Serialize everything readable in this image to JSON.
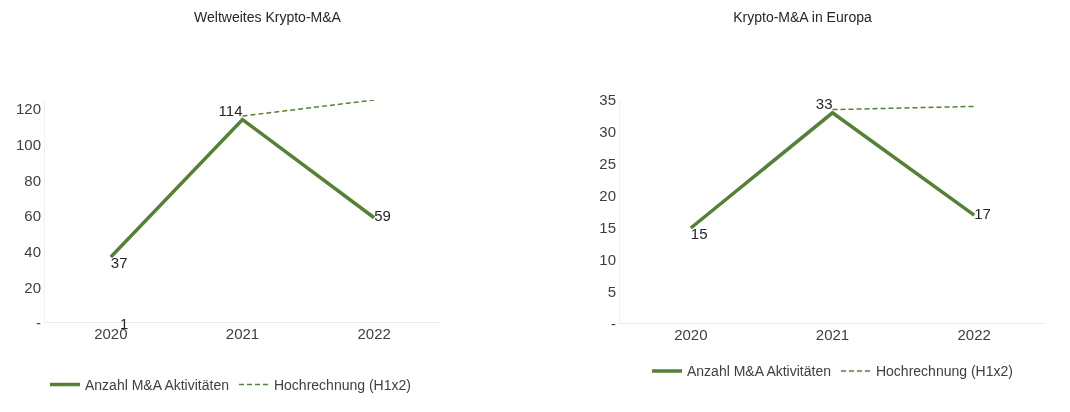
{
  "chart_data": [
    {
      "type": "line",
      "title": "Weltweites Krypto-M&A",
      "categories": [
        "2020",
        "2021",
        "2022"
      ],
      "series": [
        {
          "name": "Anzahl M&A Aktivitäten",
          "color": "#548235",
          "values": [
            37,
            114,
            59
          ],
          "value_labels": [
            "37",
            "114",
            "59"
          ],
          "line_style": "solid"
        },
        {
          "name": "Hochrechnung (H1x2)",
          "color": "#548235",
          "values": [
            null,
            116,
            125
          ],
          "line_style": "dashed"
        }
      ],
      "ylim": [
        0,
        125
      ],
      "yticks": [
        {
          "value": 0,
          "label": "-"
        },
        20,
        40,
        60,
        80,
        100,
        120
      ],
      "grid": false,
      "legend": "bottom left",
      "marker": "none",
      "annotations": [
        "1"
      ]
    },
    {
      "type": "line",
      "title": "Krypto-M&A in Europa",
      "categories": [
        "2020",
        "2021",
        "2022"
      ],
      "series": [
        {
          "name": "Anzahl M&A Aktivitäten",
          "color": "#548235",
          "values": [
            15,
            33,
            17
          ],
          "value_labels": [
            "15",
            "33",
            "17"
          ],
          "line_style": "solid"
        },
        {
          "name": "Hochrechnung (H1x2)",
          "color": "#548235",
          "values": [
            null,
            33.5,
            34
          ],
          "line_style": "dashed"
        }
      ],
      "ylim": [
        0,
        35
      ],
      "yticks": [
        {
          "value": 0,
          "label": "-"
        },
        5,
        10,
        15,
        20,
        25,
        30,
        35
      ],
      "grid": false,
      "legend": "bottom",
      "marker": "none"
    }
  ]
}
